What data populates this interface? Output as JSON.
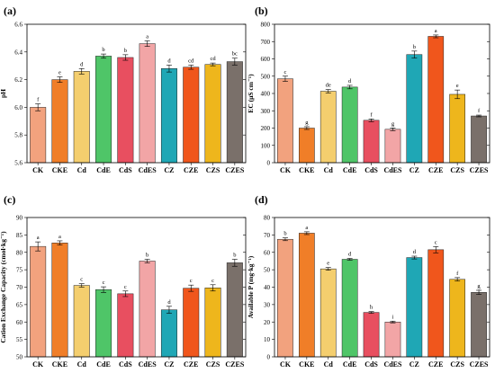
{
  "styles": {
    "CK": {
      "color": "#f2a27e",
      "hatch": false
    },
    "CKE": {
      "color": "#f07e28",
      "hatch": false
    },
    "Cd": {
      "color": "#f4ce6e",
      "hatch": false
    },
    "CdE": {
      "color": "#4fc568",
      "hatch": false
    },
    "CdS": {
      "color": "#e84f60",
      "hatch": false
    },
    "CdES": {
      "color": "#f2a5a6",
      "hatch": false
    },
    "CZ": {
      "color": "#1fa7b5",
      "hatch": false
    },
    "CZE": {
      "color": "#f0561c",
      "hatch": false
    },
    "CZS": {
      "color": "#eeb61c",
      "hatch": false
    },
    "CZES": {
      "color": "#7a706a",
      "hatch": false
    }
  },
  "chart_data": [
    {
      "type": "bar",
      "panel_label": "(a)",
      "categories": [
        "CK",
        "CKE",
        "Cd",
        "CdE",
        "CdS",
        "CdES",
        "CZ",
        "CZE",
        "CZS",
        "CZES"
      ],
      "values": [
        6.0,
        6.2,
        6.26,
        6.37,
        6.36,
        6.46,
        6.28,
        6.29,
        6.31,
        6.33
      ],
      "errors": [
        0.025,
        0.02,
        0.02,
        0.015,
        0.02,
        0.02,
        0.025,
        0.015,
        0.01,
        0.025
      ],
      "significance": [
        "f",
        "e",
        "d",
        "b",
        "b",
        "a",
        "d",
        "cd",
        "cd",
        "bc"
      ],
      "ylabel": "pH",
      "ylim": [
        5.6,
        6.6
      ],
      "yticks": [
        5.6,
        5.8,
        6.0,
        6.2,
        6.4,
        6.6
      ],
      "ytick_labels": [
        "5.6",
        "5.8",
        "6.0",
        "6.2",
        "6.4",
        "6.6"
      ],
      "grid": false,
      "legend": false
    },
    {
      "type": "bar",
      "panel_label": "(b)",
      "categories": [
        "CK",
        "CKE",
        "Cd",
        "CdE",
        "CdS",
        "CdES",
        "CZ",
        "CZE",
        "CZS",
        "CZES"
      ],
      "values": [
        485,
        200,
        413,
        437,
        245,
        193,
        625,
        730,
        395,
        270
      ],
      "errors": [
        15,
        8,
        10,
        10,
        8,
        8,
        20,
        8,
        25,
        5
      ],
      "significance": [
        "c",
        "g",
        "de",
        "d",
        "f",
        "g",
        "b",
        "a",
        "e",
        "f"
      ],
      "ylabel": "EC (μS cm⁻¹)",
      "ylim": [
        0,
        800
      ],
      "yticks": [
        0,
        100,
        200,
        300,
        400,
        500,
        600,
        700,
        800
      ],
      "ytick_labels": [
        "0",
        "100",
        "200",
        "300",
        "400",
        "500",
        "600",
        "700",
        "800"
      ],
      "grid": false,
      "legend": false
    },
    {
      "type": "bar",
      "panel_label": "(c)",
      "categories": [
        "CK",
        "CKE",
        "Cd",
        "CdE",
        "CdS",
        "CdES",
        "CZ",
        "CZE",
        "CZS",
        "CZES"
      ],
      "values": [
        81.7,
        82.7,
        70.5,
        69.3,
        68.1,
        77.5,
        63.5,
        69.7,
        69.8,
        77.0
      ],
      "errors": [
        1.3,
        0.6,
        0.5,
        0.8,
        0.8,
        0.5,
        1.0,
        0.9,
        0.9,
        1.0
      ],
      "significance": [
        "a",
        "a",
        "c",
        "c",
        "c",
        "b",
        "d",
        "c",
        "c",
        "b"
      ],
      "ylabel": "Cation Exchange Capacity (cmol·kg⁻¹)",
      "ylim": [
        50,
        90
      ],
      "yticks": [
        50,
        55,
        60,
        65,
        70,
        75,
        80,
        85,
        90
      ],
      "ytick_labels": [
        "50",
        "55",
        "60",
        "65",
        "70",
        "75",
        "80",
        "85",
        "90"
      ],
      "grid": false,
      "legend": false
    },
    {
      "type": "bar",
      "panel_label": "(d)",
      "categories": [
        "CK",
        "CKE",
        "Cd",
        "CdE",
        "CdS",
        "CdES",
        "CZ",
        "CZE",
        "CZS",
        "CZES"
      ],
      "values": [
        67.5,
        71.0,
        50.5,
        56.0,
        25.5,
        20.0,
        57.0,
        61.5,
        44.5,
        37.0
      ],
      "errors": [
        0.8,
        0.8,
        0.8,
        0.5,
        0.5,
        0.5,
        0.8,
        1.8,
        1.0,
        1.2
      ],
      "significance": [
        "b",
        "a",
        "e",
        "d",
        "h",
        "i",
        "d",
        "c",
        "f",
        "g"
      ],
      "ylabel": "Available P (mg·kg⁻¹)",
      "ylim": [
        0,
        80
      ],
      "yticks": [
        0,
        10,
        20,
        30,
        40,
        50,
        60,
        70,
        80
      ],
      "ytick_labels": [
        "0",
        "10",
        "20",
        "30",
        "40",
        "50",
        "60",
        "70",
        "80"
      ],
      "grid": false,
      "legend": false
    }
  ]
}
